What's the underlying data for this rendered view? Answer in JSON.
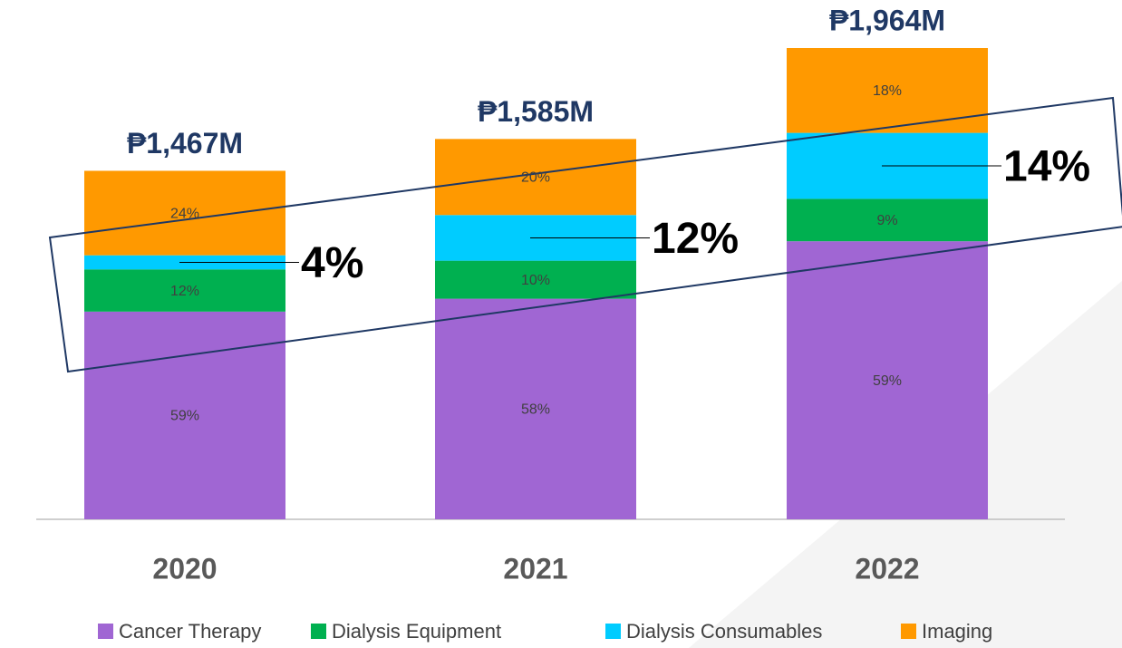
{
  "chart_data": {
    "type": "bar",
    "stacked": true,
    "categories": [
      "2020",
      "2021",
      "2022"
    ],
    "totals": {
      "values": [
        1467,
        1585,
        1964
      ],
      "value_labels": [
        "₱1,467M",
        "₱1,585M",
        "₱1,964M"
      ]
    },
    "series": [
      {
        "name": "Cancer Therapy",
        "color": "#a066d3",
        "values": [
          59,
          58,
          59
        ],
        "value_labels": [
          "59%",
          "58%",
          "59%"
        ]
      },
      {
        "name": "Dialysis Equipment",
        "color": "#00b050",
        "values": [
          12,
          10,
          9
        ],
        "value_labels": [
          "12%",
          "10%",
          "9%"
        ]
      },
      {
        "name": "Dialysis Consumables",
        "color": "#00ccff",
        "values": [
          4,
          12,
          14
        ],
        "value_labels": [
          "4%",
          "12%",
          "14%"
        ],
        "callout": true
      },
      {
        "name": "Imaging",
        "color": "#ff9900",
        "values": [
          24,
          20,
          18
        ],
        "value_labels": [
          "24%",
          "20%",
          "18%"
        ]
      }
    ]
  }
}
